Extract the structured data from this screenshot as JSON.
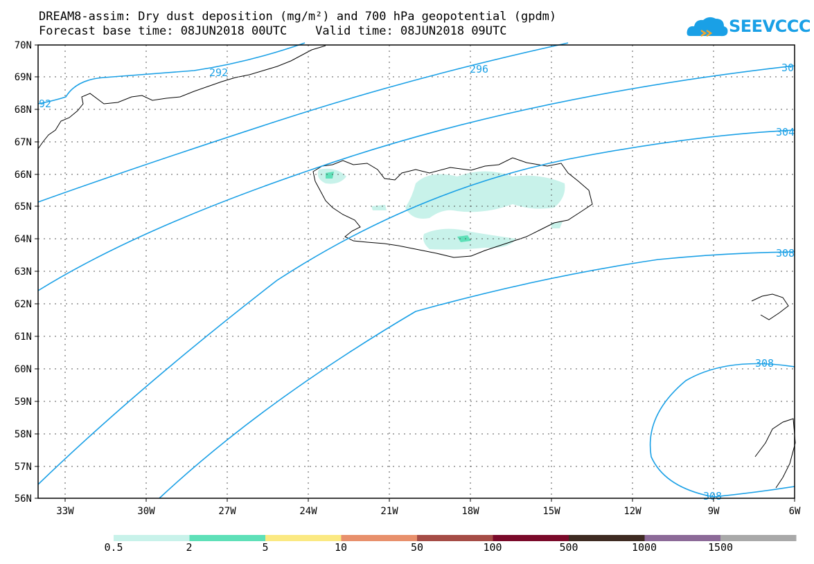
{
  "header": {
    "title_line1": "DREAM8-assim: Dry dust deposition (mg/m²) and 700 hPa geopotential (gpdm)",
    "title_line2": "Forecast base time: 08JUN2018 00UTC    Valid time: 08JUN2018 09UTC",
    "logo_text": "SEEVCCC"
  },
  "map": {
    "lat_labels": [
      "70N",
      "69N",
      "68N",
      "67N",
      "66N",
      "65N",
      "64N",
      "63N",
      "62N",
      "61N",
      "60N",
      "59N",
      "58N",
      "57N",
      "56N"
    ],
    "lon_labels": [
      "33W",
      "30W",
      "27W",
      "24W",
      "21W",
      "18W",
      "15W",
      "12W",
      "9W",
      "6W"
    ],
    "contour_labels": [
      "292",
      "92",
      "296",
      "30",
      "304",
      "308",
      "308",
      "308"
    ],
    "colors": {
      "contour": "#1aa0e6",
      "dust_low": "#c8f2ea",
      "dust_mid": "#5ee0b8"
    }
  },
  "colorbar": {
    "labels": [
      "0.5",
      "2",
      "5",
      "10",
      "50",
      "100",
      "500",
      "1000",
      "1500"
    ],
    "colors": [
      "#c8f2ea",
      "#5ee0b8",
      "#fbe982",
      "#e8906c",
      "#a54c46",
      "#7a0a2a",
      "#3e2b22",
      "#8c6a98",
      "#a9a9a9"
    ]
  }
}
